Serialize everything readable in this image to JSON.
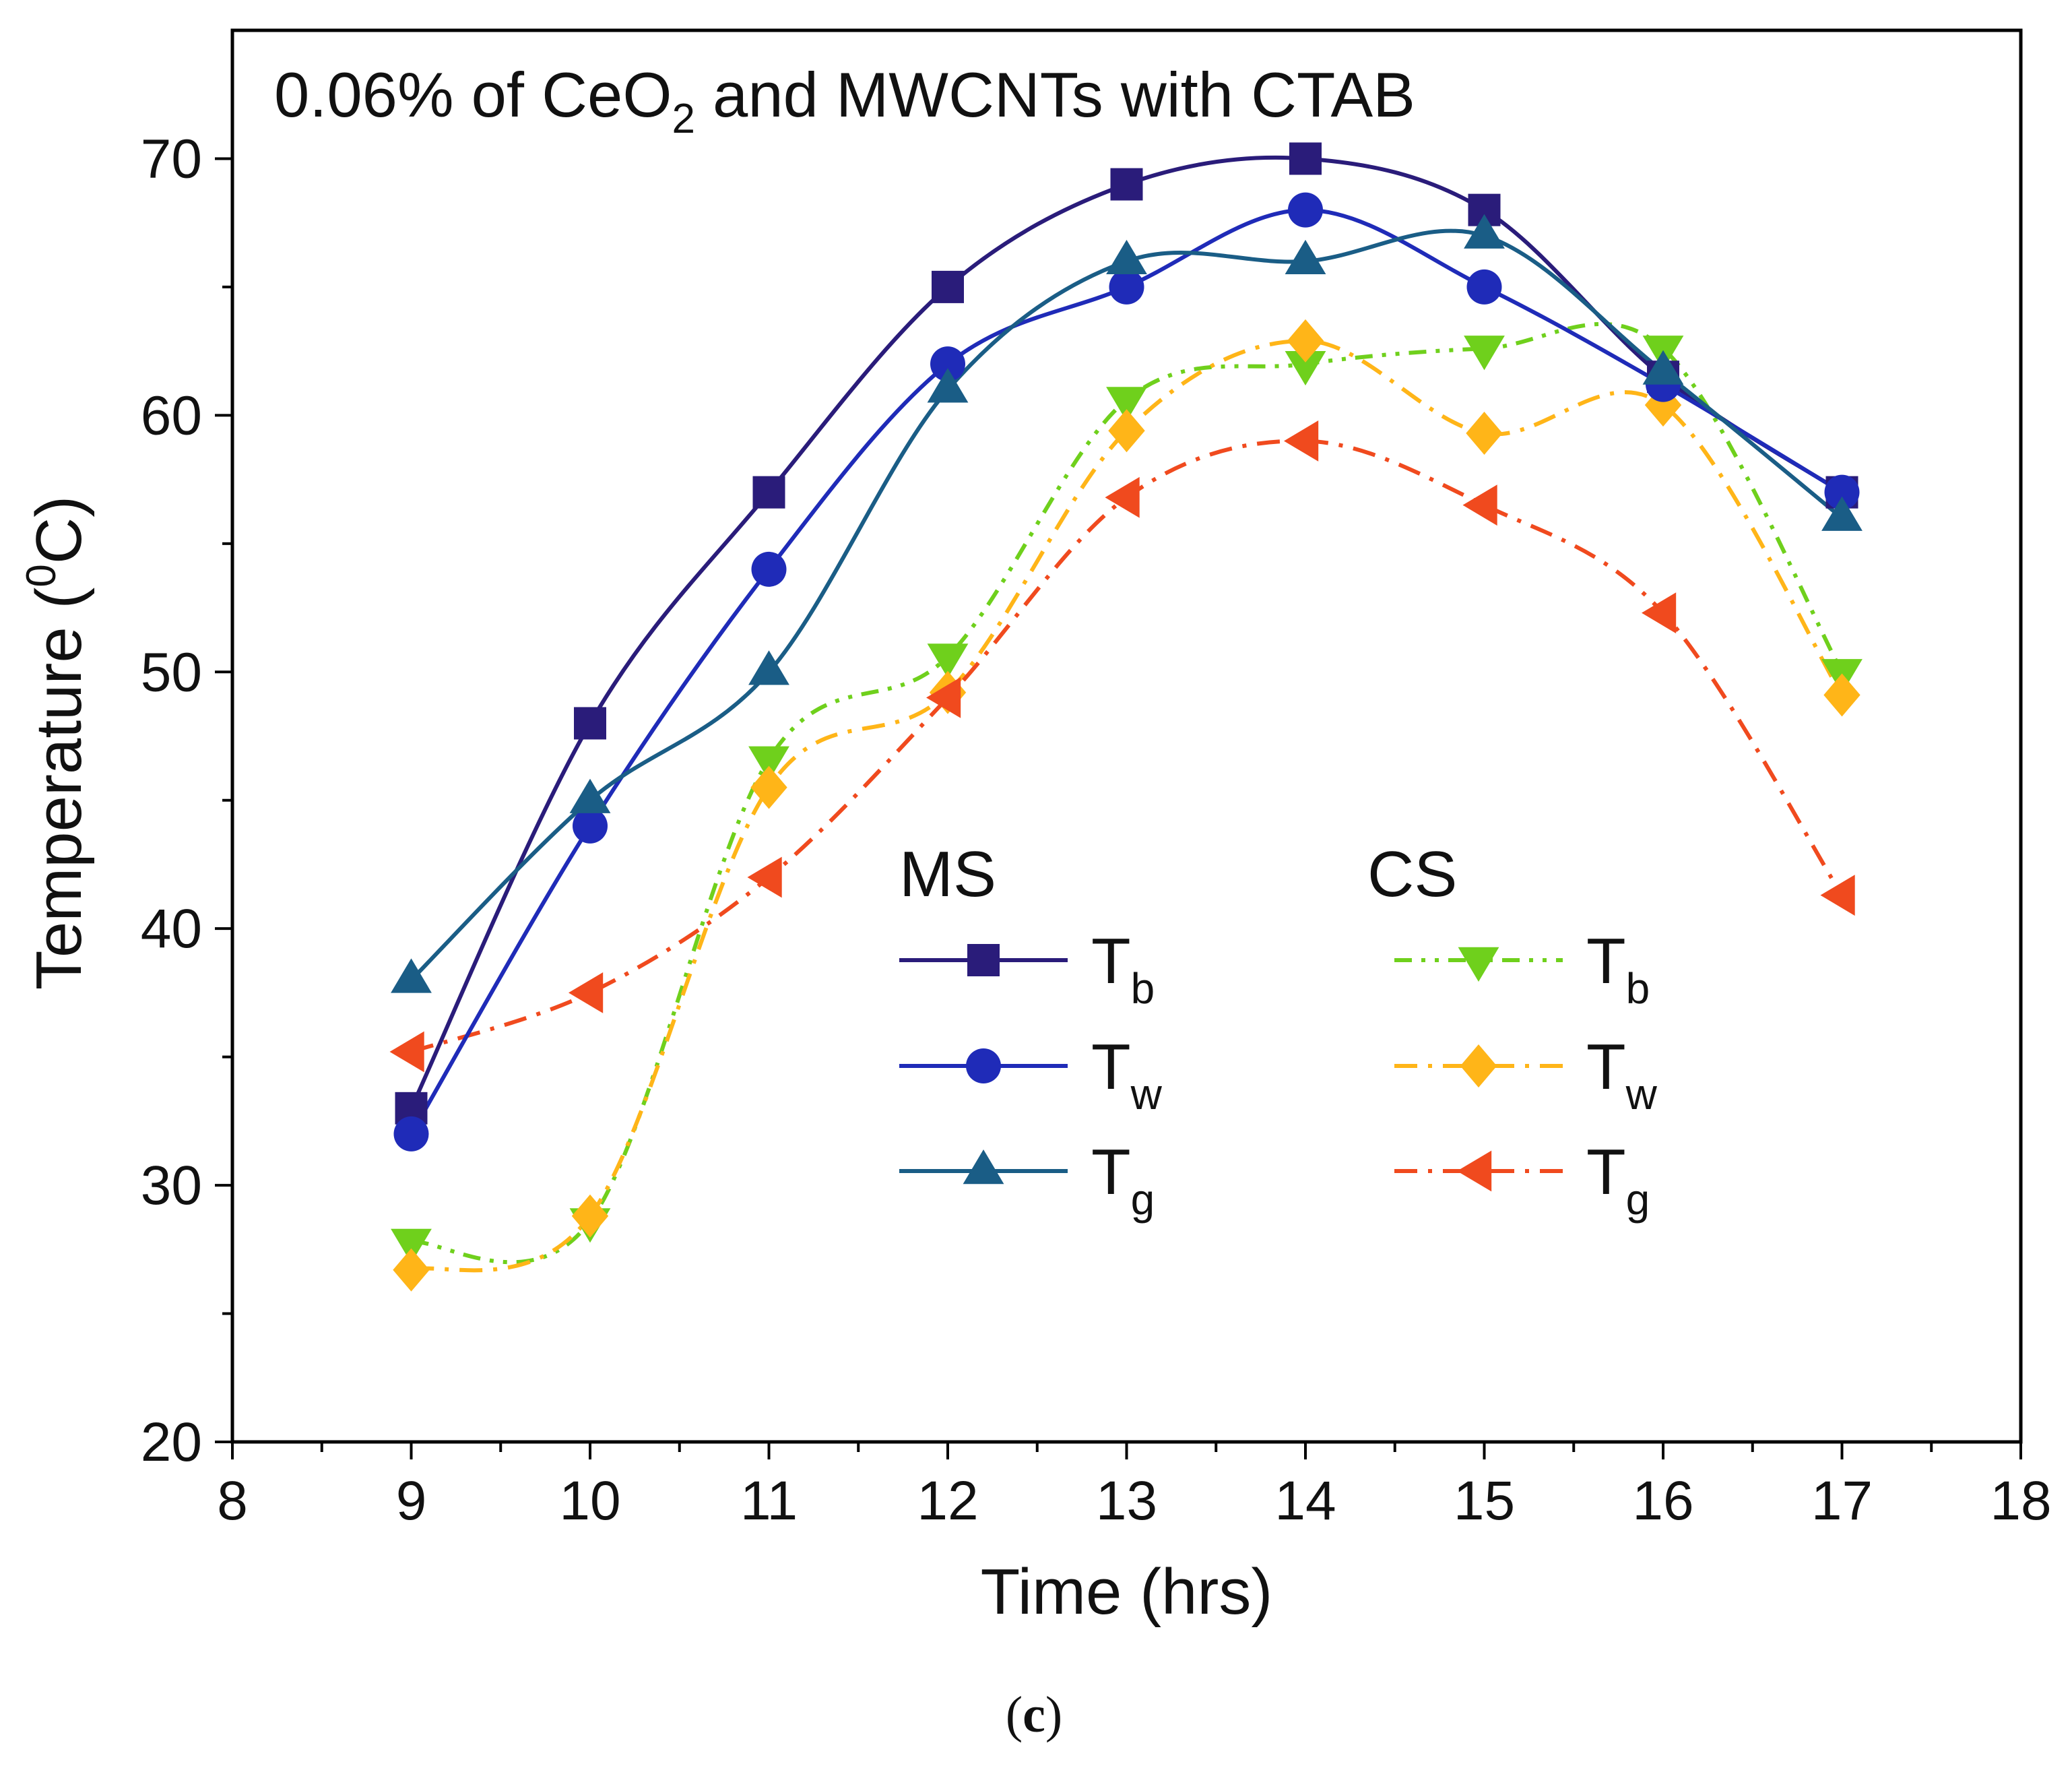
{
  "chart_data": {
    "type": "line",
    "title_main": "0.06% of CeO",
    "title_sub": "2",
    "title_rest": " and MWCNTs with CTAB",
    "xlabel": "Time (hrs)",
    "ylabel_main": "Temperature (",
    "ylabel_sup": "0",
    "ylabel_rest": "C)",
    "caption": "(c)",
    "caption_parts": {
      "open": "(",
      "letter": "c",
      "close": ")"
    },
    "xlim": [
      8,
      18
    ],
    "ylim": [
      20,
      75
    ],
    "x_ticks": [
      "8",
      "9",
      "10",
      "11",
      "12",
      "13",
      "14",
      "15",
      "16",
      "17",
      "18"
    ],
    "y_ticks": [
      "20",
      "30",
      "40",
      "50",
      "60",
      "70"
    ],
    "y_tick_values": [
      20,
      30,
      40,
      50,
      60,
      70
    ],
    "legend": {
      "placement": "center-bottom",
      "group_ms": "MS",
      "group_cs": "CS"
    },
    "x": [
      9,
      10,
      11,
      12,
      13,
      14,
      15,
      16,
      17
    ],
    "series": [
      {
        "key": "ms_tb",
        "group": "MS",
        "name": "T",
        "sub": "b",
        "values": [
          33,
          48,
          57,
          65,
          69,
          70,
          68,
          61.5,
          57
        ],
        "color": "#2a1c7a",
        "marker": "square",
        "dash": "solid"
      },
      {
        "key": "ms_tw",
        "group": "MS",
        "name": "T",
        "sub": "w",
        "values": [
          32,
          44,
          54,
          62,
          65,
          68,
          65,
          61.2,
          57
        ],
        "color": "#1f2bb8",
        "marker": "circle",
        "dash": "solid"
      },
      {
        "key": "ms_tg",
        "group": "MS",
        "name": "T",
        "sub": "g",
        "values": [
          38,
          45,
          50,
          61,
          66,
          66,
          67,
          61.7,
          56
        ],
        "color": "#1a5d86",
        "marker": "triangle-up",
        "dash": "solid"
      },
      {
        "key": "cs_tb",
        "group": "CS",
        "name": "T",
        "sub": "b",
        "values": [
          27.8,
          28.6,
          46.6,
          50.6,
          60.6,
          62,
          62.6,
          62.6,
          50
        ],
        "color": "#6fd01c",
        "marker": "triangle-down",
        "dash": "dashdotdot"
      },
      {
        "key": "cs_tw",
        "group": "CS",
        "name": "T",
        "sub": "w",
        "values": [
          26.7,
          28.8,
          45.5,
          49.2,
          59.4,
          62.9,
          59.3,
          60.4,
          49.1
        ],
        "color": "#ffb518",
        "marker": "diamond",
        "dash": "dashdot"
      },
      {
        "key": "cs_tg",
        "group": "CS",
        "name": "T",
        "sub": "g",
        "values": [
          35.2,
          37.5,
          42,
          49,
          56.8,
          59,
          56.5,
          52.3,
          41.3
        ],
        "color": "#f04a1e",
        "marker": "triangle-left",
        "dash": "dashdot"
      }
    ]
  }
}
